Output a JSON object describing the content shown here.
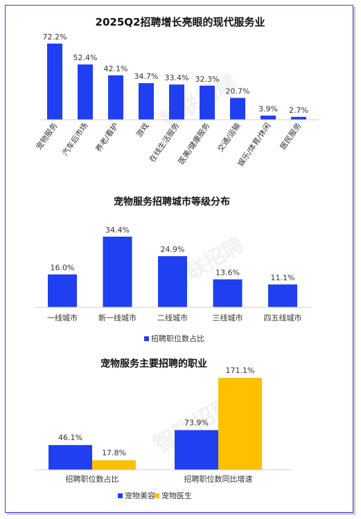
{
  "colors": {
    "blue": "#1f3ff0",
    "yellow": "#ffc000",
    "border": "#4338ca"
  },
  "watermark": "智联招聘",
  "chart_data": [
    {
      "type": "bar",
      "title": "2025Q2招聘增长亮眼的现代服务业",
      "categories": [
        "宠物服务",
        "汽车后市场",
        "养老/看护",
        "游戏",
        "在线生活服务",
        "医美/健康服务",
        "交通/运输",
        "娱乐/体育/休闲",
        "居民服务"
      ],
      "values": [
        72.2,
        52.4,
        42.1,
        34.7,
        33.4,
        32.3,
        20.7,
        3.9,
        2.7
      ],
      "value_labels": [
        "72.2%",
        "52.4%",
        "42.1%",
        "34.7%",
        "33.4%",
        "32.3%",
        "20.7%",
        "3.9%",
        "2.7%"
      ],
      "ylim": [
        0,
        72.2
      ],
      "grid": false
    },
    {
      "type": "bar",
      "title": "宠物服务招聘城市等级分布",
      "categories": [
        "一线城市",
        "新一线城市",
        "二线城市",
        "三线城市",
        "四五线城市"
      ],
      "series": [
        {
          "name": "招聘职位数占比",
          "values": [
            16.0,
            34.4,
            24.9,
            13.6,
            11.1
          ],
          "value_labels": [
            "16.0%",
            "34.4%",
            "24.9%",
            "13.6%",
            "11.1%"
          ]
        }
      ],
      "ylim": [
        0,
        34.4
      ],
      "legend": "bottom",
      "grid": false
    },
    {
      "type": "bar",
      "title": "宠物服务主要招聘的职业",
      "categories": [
        "招聘职位数占比",
        "招聘职位数同比增速"
      ],
      "series": [
        {
          "name": "宠物美容",
          "values": [
            46.1,
            73.9
          ],
          "value_labels": [
            "46.1%",
            "73.9%"
          ]
        },
        {
          "name": "宠物医生",
          "values": [
            17.8,
            171.1
          ],
          "value_labels": [
            "17.8%",
            "171.1%"
          ]
        }
      ],
      "ylim": [
        0,
        171.1
      ],
      "legend": "bottom",
      "grid": false
    }
  ]
}
